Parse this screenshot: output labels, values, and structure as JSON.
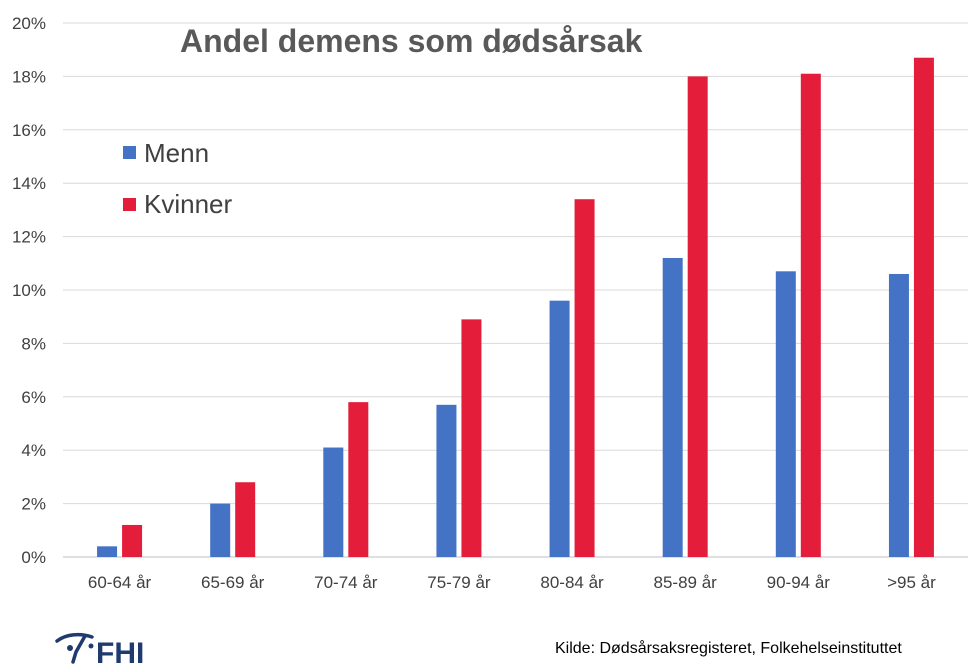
{
  "chart_data": {
    "type": "bar",
    "title": "Andel demens som dødsårsak",
    "categories": [
      "60-64 år",
      "65-69 år",
      "70-74 år",
      "75-79 år",
      "80-84 år",
      "85-89 år",
      "90-94 år",
      ">95 år"
    ],
    "series": [
      {
        "name": "Menn",
        "color": "#4472C4",
        "values": [
          0.4,
          2.0,
          4.1,
          5.7,
          9.6,
          11.2,
          10.7,
          10.6
        ]
      },
      {
        "name": "Kvinner",
        "color": "#E41E3A",
        "values": [
          1.2,
          2.8,
          5.8,
          8.9,
          13.4,
          18.0,
          18.1,
          18.7
        ]
      }
    ],
    "xlabel": "",
    "ylabel": "",
    "ylim": [
      0,
      20
    ],
    "y_ticks": [
      "0%",
      "2%",
      "4%",
      "6%",
      "8%",
      "10%",
      "12%",
      "14%",
      "16%",
      "18%",
      "20%"
    ],
    "grid": true,
    "legend_position": "top-left",
    "gridline_color": "#d9d9d9",
    "axis_color": "#bfbfbf"
  },
  "footer": {
    "source": "Kilde: Dødsårsaksregisteret, Folkehelseinstituttet",
    "logo_text": "FHI",
    "logo_color": "#1f3b6e"
  }
}
